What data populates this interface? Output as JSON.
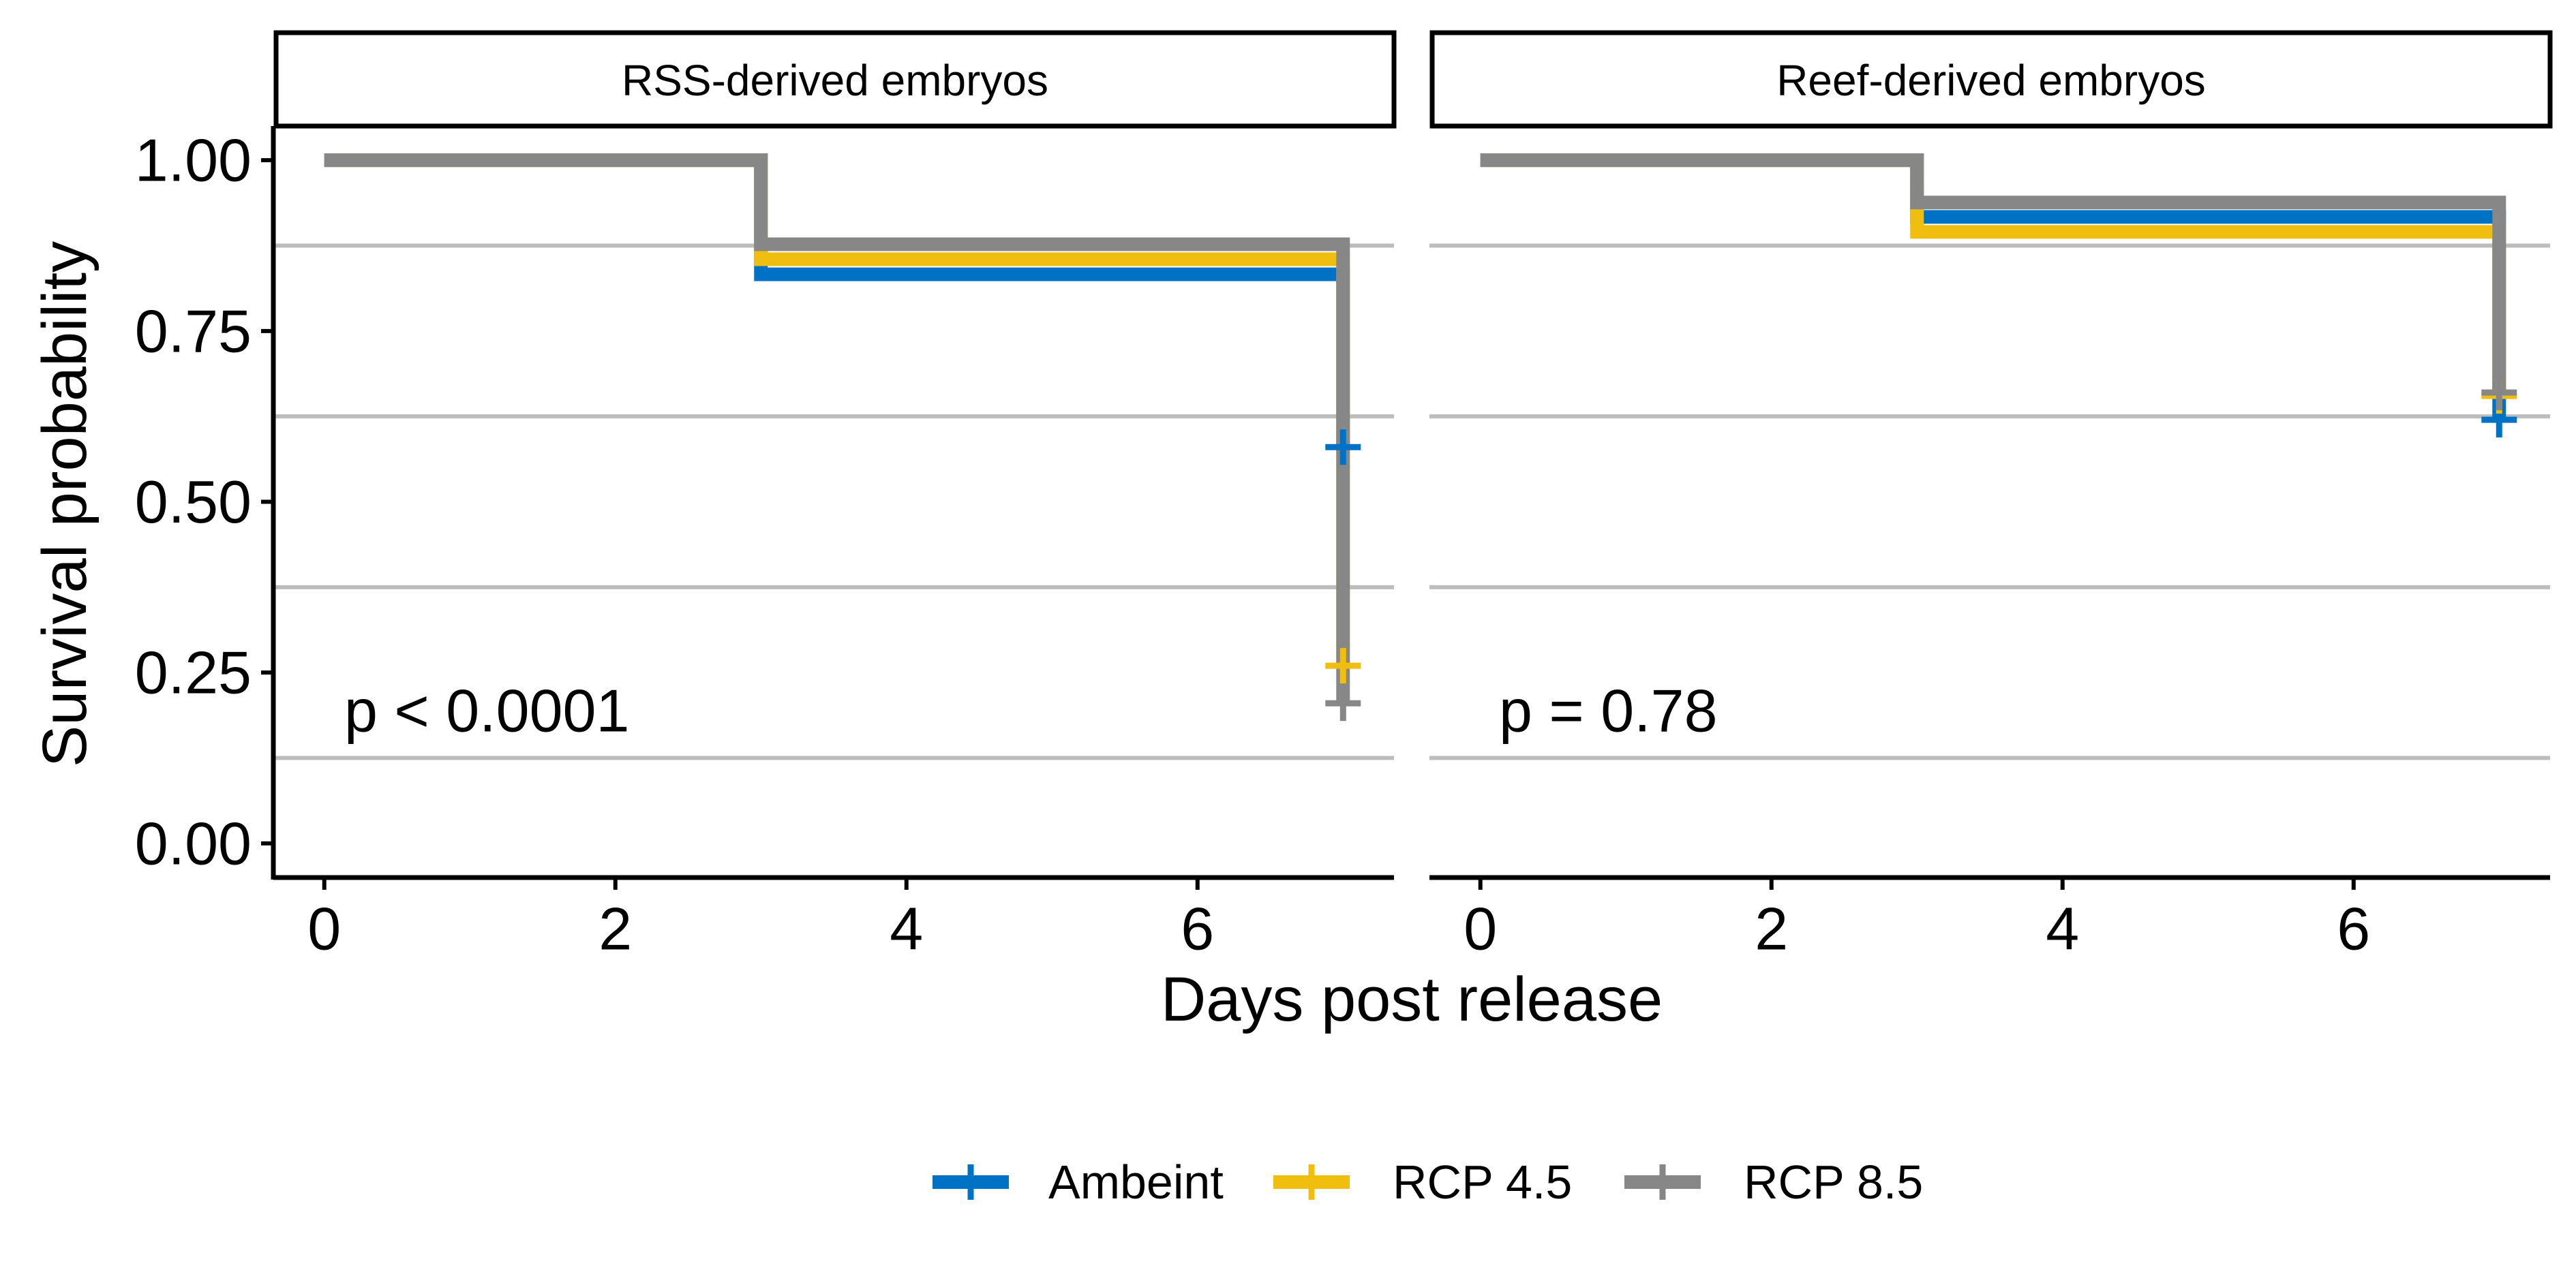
{
  "chart_data": {
    "type": "line",
    "subtype": "kaplan-meier step",
    "xlabel": "Days post release",
    "ylabel": "Survival probability",
    "xlim": [
      -0.35,
      7.35
    ],
    "ylim": [
      -0.05,
      1.05
    ],
    "x_ticks": [
      0,
      2,
      4,
      6
    ],
    "x_tick_labels": [
      "0",
      "2",
      "4",
      "6"
    ],
    "y_ticks": [
      0,
      0.25,
      0.5,
      0.75,
      1
    ],
    "y_tick_labels": [
      "0.00",
      "0.25",
      "0.50",
      "0.75",
      "1.00"
    ],
    "grid": "horizontal lines at minor breaks (0.125, 0.375, 0.625, 0.875)",
    "grid_values": [
      0.125,
      0.375,
      0.625,
      0.875
    ],
    "legend_position": "bottom",
    "colors": {
      "Ambeint": "#0072C6",
      "RCP 4.5": "#F0BE0F",
      "RCP 8.5": "#878787"
    },
    "grid_color": "#bdbdbd",
    "series_names": [
      "Ambeint",
      "RCP 4.5",
      "RCP 8.5"
    ],
    "panels": [
      {
        "strip": "RSS-derived embryos",
        "pvalue": "p < 0.0001",
        "series": [
          {
            "name": "Ambeint",
            "x": [
              0,
              3,
              7,
              7
            ],
            "y": [
              1.0,
              0.833,
              0.833,
              0.58
            ],
            "censor": [
              [
                7,
                0.58
              ]
            ]
          },
          {
            "name": "RCP 4.5",
            "x": [
              0,
              3,
              7,
              7
            ],
            "y": [
              1.0,
              0.855,
              0.855,
              0.26
            ],
            "censor": [
              [
                7,
                0.26
              ]
            ]
          },
          {
            "name": "RCP 8.5",
            "x": [
              0,
              3,
              7,
              7
            ],
            "y": [
              1.0,
              0.877,
              0.877,
              0.205
            ],
            "censor": [
              [
                7,
                0.205
              ]
            ]
          }
        ]
      },
      {
        "strip": "Reef-derived embryos",
        "pvalue": "p = 0.78",
        "series": [
          {
            "name": "Ambeint",
            "x": [
              0,
              3,
              7,
              7
            ],
            "y": [
              1.0,
              0.917,
              0.917,
              0.62
            ],
            "censor": [
              [
                7,
                0.62
              ]
            ]
          },
          {
            "name": "RCP 4.5",
            "x": [
              0,
              3,
              7,
              7
            ],
            "y": [
              1.0,
              0.895,
              0.895,
              0.655
            ],
            "censor": [
              [
                7,
                0.655
              ]
            ]
          },
          {
            "name": "RCP 8.5",
            "x": [
              0,
              3,
              7,
              7
            ],
            "y": [
              1.0,
              0.938,
              0.938,
              0.66
            ],
            "censor": [
              [
                7,
                0.66
              ]
            ]
          }
        ]
      }
    ]
  }
}
